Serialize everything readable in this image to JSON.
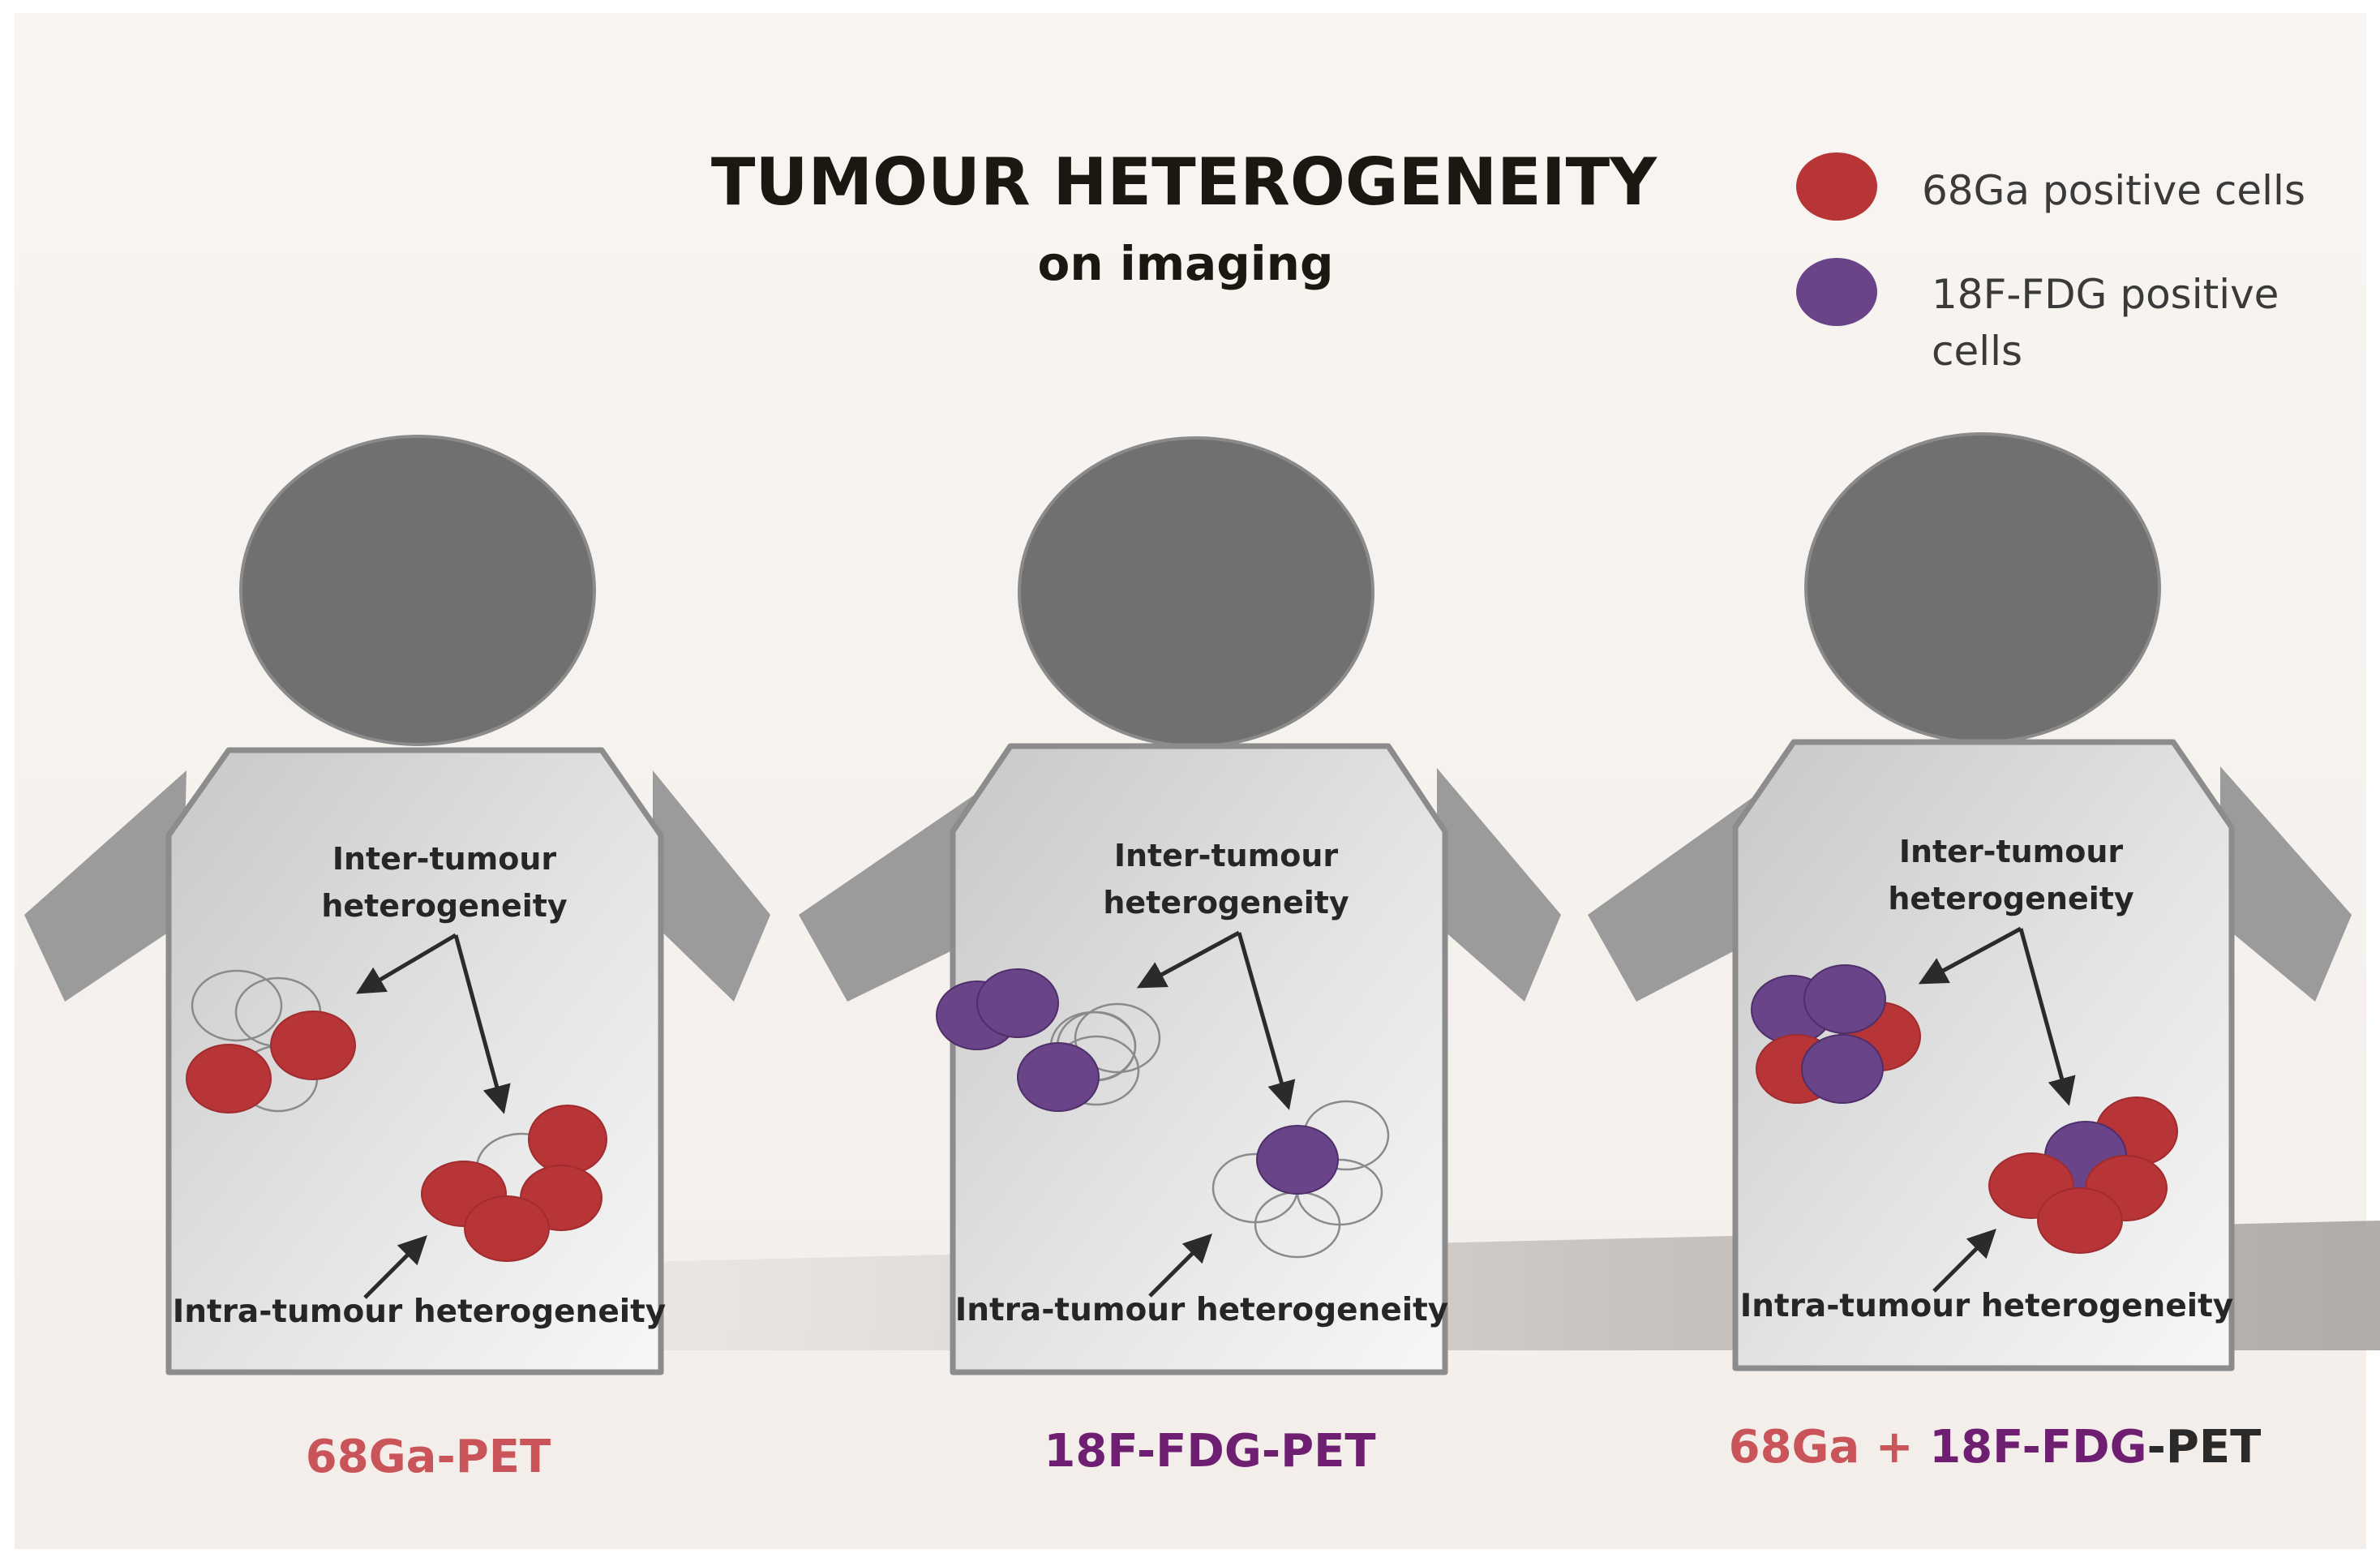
{
  "title": {
    "main": "TUMOUR HETEROGENEITY",
    "sub": "on imaging"
  },
  "legend": [
    {
      "marker": "red-cell",
      "color": "#b73437",
      "lines": [
        "68Ga positive cells"
      ]
    },
    {
      "marker": "purple-cell",
      "color": "#6a4489",
      "lines": [
        "18F-FDG positive",
        "cells"
      ]
    }
  ],
  "colors": {
    "background": "#f6f2ee",
    "head": "#707070",
    "body": "#d9d9d9",
    "red_cell": "#b73437",
    "purple_cell": "#6a4489",
    "caption_red": "#c9555a",
    "caption_purple": "#6f1f72"
  },
  "panels": [
    {
      "inter_label": [
        "Inter-tumour",
        "heterogeneity"
      ],
      "intra_label": "Intra-tumour heterogeneity",
      "caption": [
        {
          "text": "68Ga-PET",
          "color": "red"
        }
      ]
    },
    {
      "inter_label": [
        "Inter-tumour",
        "heterogeneity"
      ],
      "intra_label": "Intra-tumour heterogeneity",
      "caption": [
        {
          "text": "18F-FDG-PET",
          "color": "purple"
        }
      ]
    },
    {
      "inter_label": [
        "Inter-tumour",
        "heterogeneity"
      ],
      "intra_label": "Intra-tumour heterogeneity",
      "caption": [
        {
          "text": "68Ga + ",
          "color": "red"
        },
        {
          "text": "18F-FDG",
          "color": "purple"
        },
        {
          "text": "-PET",
          "color": "dark"
        }
      ]
    }
  ]
}
